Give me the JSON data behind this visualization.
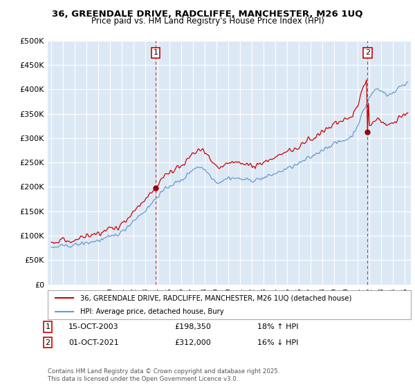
{
  "title_line1": "36, GREENDALE DRIVE, RADCLIFFE, MANCHESTER, M26 1UQ",
  "title_line2": "Price paid vs. HM Land Registry's House Price Index (HPI)",
  "ylabel_values": [
    "£0",
    "£50K",
    "£100K",
    "£150K",
    "£200K",
    "£250K",
    "£300K",
    "£350K",
    "£400K",
    "£450K",
    "£500K"
  ],
  "ylim": [
    0,
    500000
  ],
  "yticks": [
    0,
    50000,
    100000,
    150000,
    200000,
    250000,
    300000,
    350000,
    400000,
    450000,
    500000
  ],
  "legend_line1": "36, GREENDALE DRIVE, RADCLIFFE, MANCHESTER, M26 1UQ (detached house)",
  "legend_line2": "HPI: Average price, detached house, Bury",
  "annotation1": {
    "label": "1",
    "date": "15-OCT-2003",
    "price": "£198,350",
    "pct": "18% ↑ HPI"
  },
  "annotation2": {
    "label": "2",
    "date": "01-OCT-2021",
    "price": "£312,000",
    "pct": "16% ↓ HPI"
  },
  "footer": "Contains HM Land Registry data © Crown copyright and database right 2025.\nThis data is licensed under the Open Government Licence v3.0.",
  "line_color_red": "#cc0000",
  "line_color_blue": "#6699cc",
  "fill_color": "#dce9f5",
  "vline_color": "#cc0000",
  "background_color": "#ffffff",
  "plot_bg_color": "#dce9f5",
  "grid_color": "#ffffff"
}
